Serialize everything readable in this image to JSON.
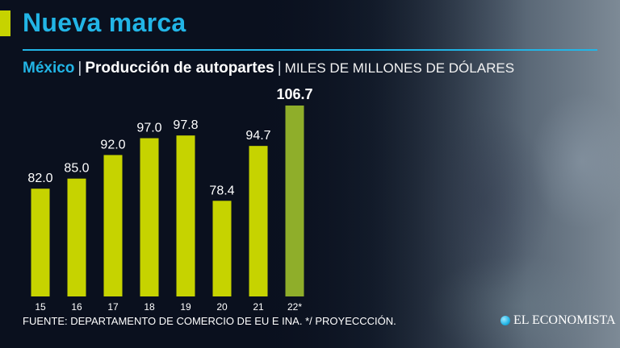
{
  "header": {
    "headline": "Nueva marca",
    "country": "México",
    "topic": "Producción de autopartes",
    "units": "MILES DE MILLONES DE DÓLARES"
  },
  "footer": {
    "source": "FUENTE: DEPARTAMENTO DE COMERCIO DE EU E INA. */ PROYECCCIÓN.",
    "brand": "EL ECONOMISTA"
  },
  "colors": {
    "bar": "#c6d300",
    "bar_projection": "#8fae2a",
    "accent": "#22b5e6",
    "background": "#0d1424"
  },
  "chart_data": {
    "type": "bar",
    "title": "",
    "xlabel": "",
    "ylabel": "",
    "categories": [
      "15",
      "16",
      "17",
      "18",
      "19",
      "20",
      "21",
      "22*"
    ],
    "values": [
      82.0,
      85.0,
      92.0,
      97.0,
      97.8,
      78.4,
      94.7,
      106.7
    ],
    "value_labels": [
      "82.0",
      "85.0",
      "92.0",
      "97.0",
      "97.8",
      "78.4",
      "94.7",
      "106.7"
    ],
    "highlighted": [
      false,
      false,
      false,
      false,
      false,
      false,
      false,
      true
    ],
    "ylim": [
      50,
      106.7
    ],
    "grid": false,
    "legend": "none"
  }
}
